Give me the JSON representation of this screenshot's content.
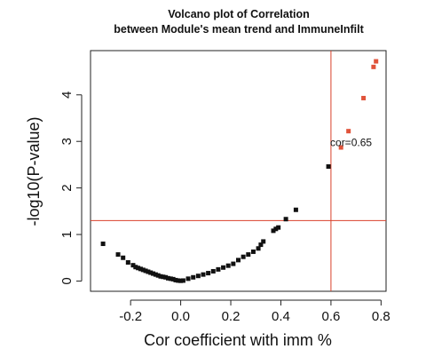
{
  "chart_data": {
    "type": "scatter",
    "title_line1": "Volcano plot of Correlation",
    "title_line2": "between Module's mean trend and ImmuneInfilt",
    "xlabel": "Cor coefficient with imm %",
    "ylabel": "-log10(P-value)",
    "xlim": [
      -0.36,
      0.82
    ],
    "ylim": [
      -0.22,
      4.95
    ],
    "x_ticks": [
      -0.2,
      0.0,
      0.2,
      0.4,
      0.6,
      0.8
    ],
    "x_tick_labels": [
      "-0.2",
      "0.0",
      "0.2",
      "0.4",
      "0.6",
      "0.8"
    ],
    "y_ticks": [
      0,
      1,
      2,
      3,
      4
    ],
    "y_tick_labels": [
      "0",
      "1",
      "2",
      "3",
      "4"
    ],
    "threshold_x": 0.6,
    "threshold_y": 1.3,
    "annotation": "cor=0.65",
    "annotation_x": 0.65,
    "annotation_y": 2.98,
    "colors": {
      "point": "#111111",
      "highlight": "#e0533a",
      "threshold_line": "#d9412b",
      "frame": "#222222"
    },
    "series": [
      {
        "values": [
          [
            -0.31,
            0.8
          ],
          [
            -0.25,
            0.57
          ],
          [
            -0.23,
            0.5
          ],
          [
            -0.21,
            0.4
          ],
          [
            -0.19,
            0.34
          ],
          [
            -0.18,
            0.3
          ],
          [
            -0.17,
            0.28
          ],
          [
            -0.16,
            0.26
          ],
          [
            -0.15,
            0.24
          ],
          [
            -0.14,
            0.22
          ],
          [
            -0.13,
            0.2
          ],
          [
            -0.12,
            0.18
          ],
          [
            -0.11,
            0.16
          ],
          [
            -0.1,
            0.14
          ],
          [
            -0.09,
            0.12
          ],
          [
            -0.08,
            0.1
          ],
          [
            -0.07,
            0.09
          ],
          [
            -0.06,
            0.08
          ],
          [
            -0.05,
            0.06
          ],
          [
            -0.04,
            0.05
          ],
          [
            -0.03,
            0.04
          ],
          [
            -0.02,
            0.02
          ],
          [
            -0.01,
            0.01
          ],
          [
            0.0,
            0.005
          ],
          [
            0.01,
            0.01
          ],
          [
            0.03,
            0.05
          ],
          [
            0.05,
            0.08
          ],
          [
            0.07,
            0.11
          ],
          [
            0.09,
            0.14
          ],
          [
            0.11,
            0.17
          ],
          [
            0.13,
            0.21
          ],
          [
            0.15,
            0.25
          ],
          [
            0.17,
            0.29
          ],
          [
            0.19,
            0.33
          ],
          [
            0.21,
            0.37
          ],
          [
            0.23,
            0.45
          ],
          [
            0.25,
            0.52
          ],
          [
            0.27,
            0.57
          ],
          [
            0.29,
            0.63
          ],
          [
            0.31,
            0.7
          ],
          [
            0.32,
            0.78
          ],
          [
            0.33,
            0.85
          ],
          [
            0.37,
            1.08
          ],
          [
            0.38,
            1.12
          ],
          [
            0.39,
            1.15
          ],
          [
            0.42,
            1.33
          ],
          [
            0.46,
            1.53
          ],
          [
            0.59,
            2.46
          ]
        ]
      },
      {
        "values": [
          [
            0.64,
            2.87
          ],
          [
            0.67,
            3.22
          ],
          [
            0.73,
            3.93
          ],
          [
            0.77,
            4.6
          ],
          [
            0.78,
            4.72
          ]
        ]
      }
    ]
  }
}
